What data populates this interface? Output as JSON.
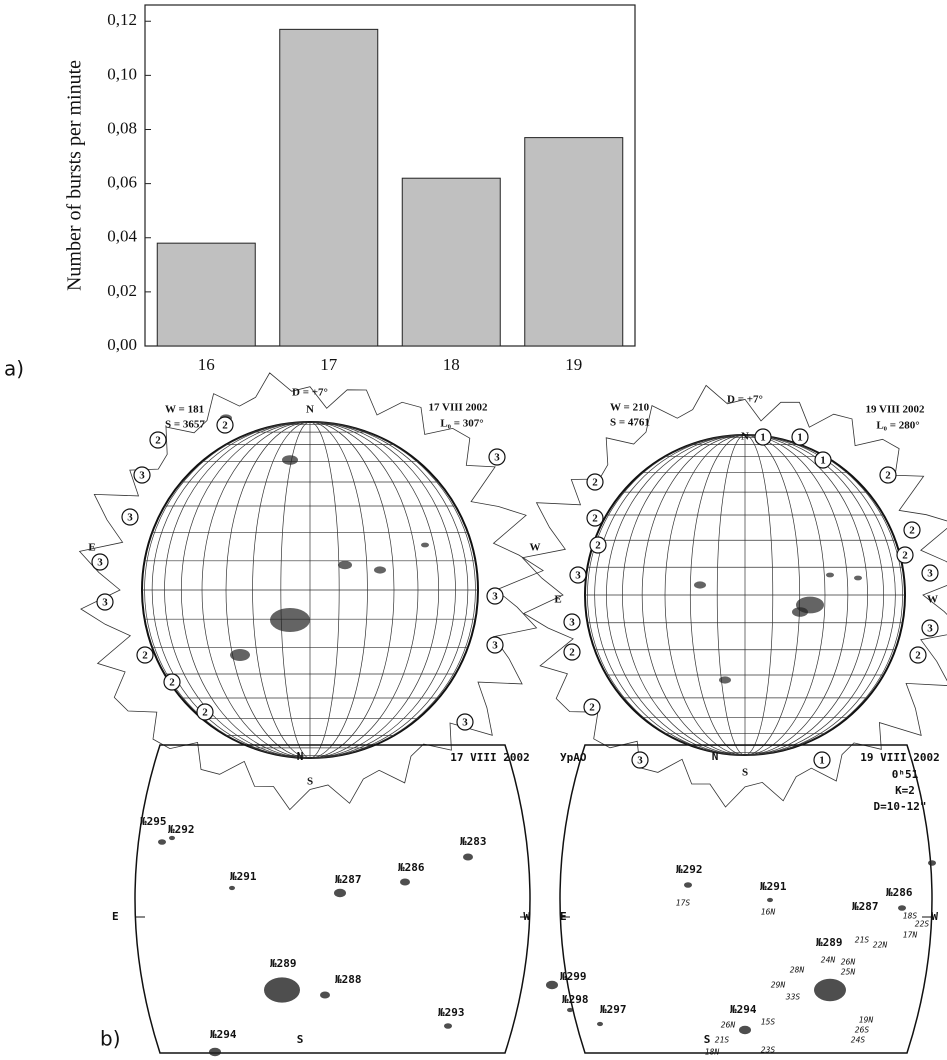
{
  "chart_data": {
    "type": "bar",
    "ylabel": "Number of bursts per minute",
    "categories": [
      "16",
      "17",
      "18",
      "19"
    ],
    "values": [
      0.038,
      0.117,
      0.062,
      0.077
    ],
    "color": "#c0c0c0",
    "ylim": [
      0,
      0.126
    ],
    "yticks": [
      {
        "value": 0,
        "label": "0,00"
      },
      {
        "value": 0.02,
        "label": "0,02"
      },
      {
        "value": 0.04,
        "label": "0,04"
      },
      {
        "value": 0.06,
        "label": "0,06"
      },
      {
        "value": 0.08,
        "label": "0,08"
      },
      {
        "value": 0.1,
        "label": "0,10"
      },
      {
        "value": 0.12,
        "label": "0,12"
      }
    ],
    "grid": false
  },
  "panel_labels": [
    "a)",
    "b)"
  ],
  "globes": [
    {
      "labels": [
        "W = 181",
        "S = 3657",
        "D = +7°",
        "N",
        "S",
        "E",
        "W",
        "17 VIII 2002",
        "L₀ = 307°"
      ],
      "contour_levels": [
        "2",
        "2",
        "3",
        "3",
        "3",
        "3",
        "2",
        "2",
        "2",
        "3",
        "3",
        "3",
        "3"
      ]
    },
    {
      "labels": [
        "W = 210",
        "S = 4761",
        "D = +7°",
        "N",
        "S",
        "E",
        "W",
        "19 VIII 2002",
        "L₀ = 280°"
      ],
      "contour_levels": [
        "1",
        "1",
        "1",
        "2",
        "2",
        "2",
        "3",
        "3",
        "2",
        "2",
        "3",
        "1",
        "2",
        "2",
        "2",
        "3",
        "3",
        "2"
      ]
    }
  ],
  "maps": [
    {
      "labels": [
        "N",
        "S",
        "E",
        "W",
        "17 VIII 2002",
        "№295",
        "№292",
        "№291",
        "№287",
        "№286",
        "№283",
        "№289",
        "№288",
        "№293",
        "№294"
      ],
      "small_labels": []
    },
    {
      "labels": [
        "УрАО",
        "N",
        "S",
        "E",
        "W",
        "19 VIII 2002",
        "0ʰ51",
        "K=2",
        "D=10-12\"",
        "№292",
        "№291",
        "№287",
        "№286",
        "№289",
        "№299",
        "№298",
        "№297",
        "№294"
      ],
      "small_labels": [
        "17S",
        "16N",
        "21S",
        "22N",
        "17N",
        "18S",
        "22S",
        "28N",
        "29N",
        "33S",
        "24N",
        "26N",
        "25N",
        "19N",
        "26S",
        "24S",
        "26N",
        "15S",
        "21S",
        "23S",
        "18N"
      ]
    }
  ]
}
